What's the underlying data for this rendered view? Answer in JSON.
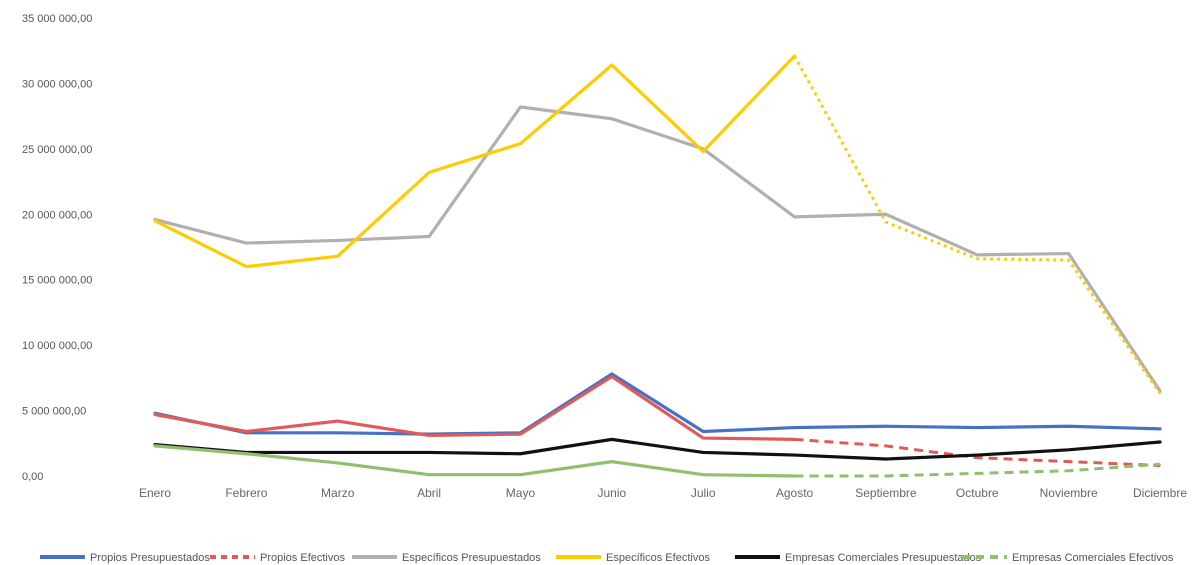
{
  "chart_data": {
    "type": "line",
    "title": "",
    "xlabel": "",
    "ylabel": "",
    "ylim": [
      0,
      35000000
    ],
    "y_ticks": [
      "0,00",
      "5 000 000,00",
      "10 000 000,00",
      "15 000 000,00",
      "20 000 000,00",
      "25 000 000,00",
      "30 000 000,00",
      "35 000 000,00"
    ],
    "y_tick_values": [
      0,
      5000000,
      10000000,
      15000000,
      20000000,
      25000000,
      30000000,
      35000000
    ],
    "grid": false,
    "legend_position": "bottom",
    "categories": [
      "Enero",
      "Febrero",
      "Marzo",
      "Abril",
      "Mayo",
      "Junio",
      "Julio",
      "Agosto",
      "Septiembre",
      "Octubre",
      "Noviembre",
      "Diciembre"
    ],
    "series": [
      {
        "name": "Propios Presupuestados",
        "color": "#4472c4",
        "dash": "solid",
        "values": [
          4800000,
          3300000,
          3300000,
          3200000,
          3300000,
          7800000,
          3400000,
          3700000,
          3800000,
          3700000,
          3800000,
          3600000
        ]
      },
      {
        "name": "Propios Efectivos",
        "color": "#e05a5a",
        "dash": "solid",
        "dash_from_index": 7,
        "values": [
          4700000,
          3400000,
          4200000,
          3100000,
          3200000,
          7600000,
          2900000,
          2800000,
          2300000,
          1400000,
          1100000,
          800000
        ]
      },
      {
        "name": "Específicos Presupuestados",
        "color": "#b0b0b0",
        "dash": "solid",
        "values": [
          19600000,
          17800000,
          18000000,
          18300000,
          28200000,
          27300000,
          25000000,
          19800000,
          20000000,
          16900000,
          17000000,
          6500000
        ]
      },
      {
        "name": "Específicos Efectivos",
        "color": "#ffcc00",
        "dash": "solid",
        "dash_from_index": 7,
        "values": [
          19500000,
          16000000,
          16800000,
          23200000,
          25400000,
          31400000,
          24800000,
          32100000,
          19400000,
          16600000,
          16500000,
          6300000
        ]
      },
      {
        "name": "Empresas Comerciales Presupuestados",
        "color": "#111111",
        "dash": "solid",
        "values": [
          2400000,
          1800000,
          1800000,
          1800000,
          1700000,
          2800000,
          1800000,
          1600000,
          1300000,
          1600000,
          2000000,
          2600000
        ]
      },
      {
        "name": "Empresas Comerciales Efectivos",
        "color": "#8fbf6f",
        "dash": "solid",
        "dash_from_index": 7,
        "values": [
          2300000,
          1700000,
          1000000,
          100000,
          100000,
          1100000,
          100000,
          0,
          0,
          200000,
          400000,
          900000
        ]
      }
    ]
  }
}
